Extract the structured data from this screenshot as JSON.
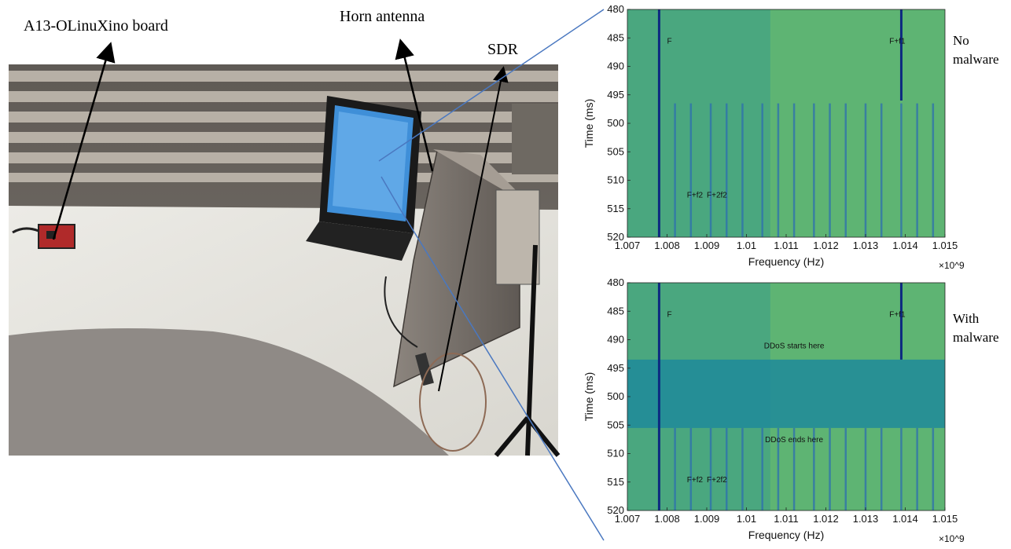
{
  "labels": {
    "board": "A13-OLinuXino board",
    "horn": "Horn antenna",
    "sdr": "SDR",
    "no_malware": [
      "No",
      "malware"
    ],
    "with_malware": [
      "With",
      "malware"
    ]
  },
  "chart_data": [
    {
      "type": "heatmap",
      "title": "",
      "xlabel": "Frequency (Hz)",
      "ylabel": "Time (ms)",
      "x_multiplier": "×10^9",
      "xlim": [
        1.007,
        1.015
      ],
      "ylim": [
        480,
        520
      ],
      "x_ticks": [
        "1.007",
        "1.008",
        "1.009",
        "1.01",
        "1.011",
        "1.012",
        "1.013",
        "1.014",
        "1.015"
      ],
      "y_ticks": [
        "480",
        "485",
        "490",
        "495",
        "500",
        "505",
        "510",
        "515",
        "520"
      ],
      "strong_lines": [
        {
          "x": 1.0078,
          "y_from": 480,
          "y_to": 520
        },
        {
          "x": 1.0139,
          "y_from": 480,
          "y_to": 496
        }
      ],
      "harmonic_lines": {
        "x": [
          1.0082,
          1.0086,
          1.0091,
          1.0095,
          1.0099,
          1.0104,
          1.0108,
          1.0112,
          1.0117,
          1.0121,
          1.0125,
          1.013,
          1.0134,
          1.0139,
          1.0143,
          1.0147
        ],
        "y_from": 496.5,
        "y_to": 520
      },
      "annotations": [
        {
          "text": "F",
          "x": 1.008,
          "y": 486
        },
        {
          "text": "F+f1",
          "x": 1.0136,
          "y": 486
        },
        {
          "text": "F+f2",
          "x": 1.0085,
          "y": 513
        },
        {
          "text": "F+2f2",
          "x": 1.009,
          "y": 513
        }
      ]
    },
    {
      "type": "heatmap",
      "title": "",
      "xlabel": "Frequency (Hz)",
      "ylabel": "Time (ms)",
      "x_multiplier": "×10^9",
      "xlim": [
        1.007,
        1.015
      ],
      "ylim": [
        480,
        520
      ],
      "x_ticks": [
        "1.007",
        "1.008",
        "1.009",
        "1.01",
        "1.011",
        "1.012",
        "1.013",
        "1.014",
        "1.015"
      ],
      "y_ticks": [
        "480",
        "485",
        "490",
        "495",
        "500",
        "505",
        "510",
        "515",
        "520"
      ],
      "ddos_band": {
        "y_from": 493.5,
        "y_to": 505.5
      },
      "strong_lines": [
        {
          "x": 1.0078,
          "y_from": 480,
          "y_to": 520
        },
        {
          "x": 1.0139,
          "y_from": 480,
          "y_to": 493.5
        }
      ],
      "harmonic_lines": {
        "x": [
          1.0082,
          1.0086,
          1.0091,
          1.0095,
          1.0099,
          1.0104,
          1.0108,
          1.0112,
          1.0117,
          1.0121,
          1.0125,
          1.013,
          1.0134,
          1.0139,
          1.0143,
          1.0147
        ],
        "y_from": 505.5,
        "y_to": 520
      },
      "annotations": [
        {
          "text": "F",
          "x": 1.008,
          "y": 486
        },
        {
          "text": "F+f1",
          "x": 1.0136,
          "y": 486
        },
        {
          "text": "DDoS starts here",
          "x": 1.0112,
          "y": 491.5
        },
        {
          "text": "DDoS ends here",
          "x": 1.0112,
          "y": 508
        },
        {
          "text": "F+f2",
          "x": 1.0085,
          "y": 515
        },
        {
          "text": "F+2f2",
          "x": 1.009,
          "y": 515
        }
      ]
    }
  ]
}
